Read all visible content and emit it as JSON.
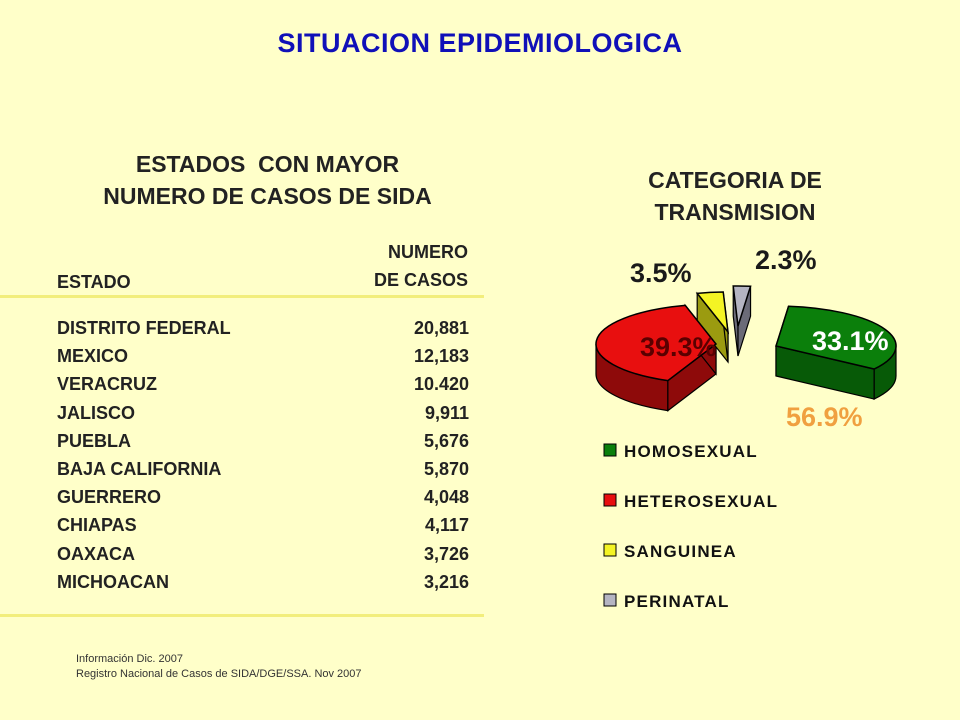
{
  "title": "SITUACION EPIDEMIOLOGICA",
  "table": {
    "heading_line1": "ESTADOS  CON MAYOR",
    "heading_line2": "NUMERO DE CASOS DE SIDA",
    "col_estado": "ESTADO",
    "col_numero_line1": "NUMERO",
    "col_numero_line2": "DE CASOS",
    "rows": [
      {
        "estado": "DISTRITO FEDERAL",
        "casos": "20,881"
      },
      {
        "estado": "MEXICO",
        "casos": "12,183"
      },
      {
        "estado": "VERACRUZ",
        "casos": "10.420"
      },
      {
        "estado": "JALISCO",
        "casos": "9,911"
      },
      {
        "estado": "PUEBLA",
        "casos": "5,676"
      },
      {
        "estado": "BAJA CALIFORNIA",
        "casos": "5,870"
      },
      {
        "estado": "GUERRERO",
        "casos": "4,048"
      },
      {
        "estado": "CHIAPAS",
        "casos": "4,117"
      },
      {
        "estado": "OAXACA",
        "casos": "3,726"
      },
      {
        "estado": "MICHOACAN",
        "casos": "3,216"
      }
    ]
  },
  "source": {
    "line1": "Información Dic. 2007",
    "line2": "Registro Nacional de Casos de SIDA/DGE/SSA. Nov 2007"
  },
  "chart_data": {
    "type": "pie",
    "title_line1": "CATEGORIA DE",
    "title_line2": "TRANSMISION",
    "series": [
      {
        "name": "HOMOSEXUAL",
        "label": "33.1%",
        "value": 33.1,
        "color": "#0b7f0b",
        "side": "#075a07"
      },
      {
        "name": "HETEROSEXUAL",
        "label": "39.3%",
        "value": 39.3,
        "color": "#e80f0f",
        "side": "#8e0a0a"
      },
      {
        "name": "SANGUINEA",
        "label": "3.5%",
        "value": 3.5,
        "color": "#f4f424",
        "side": "#9b9b10"
      },
      {
        "name": "PERINATAL",
        "label": "2.3%",
        "value": 2.3,
        "color": "#b5b5c2",
        "side": "#6b6b78"
      }
    ],
    "extra_annotation": "56.9%",
    "extra_annotation_color": "#f0a040",
    "legend_position": "bottom"
  }
}
